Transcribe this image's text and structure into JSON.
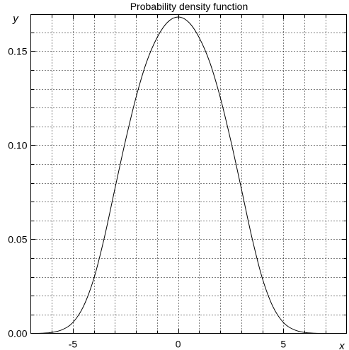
{
  "chart_data": {
    "type": "line",
    "title": "Probability density function",
    "xlabel": "x",
    "ylabel": "y",
    "xlim": [
      -7,
      8
    ],
    "ylim": [
      0,
      0.1695
    ],
    "grid": true,
    "xticks": [
      -5,
      0,
      5
    ],
    "xtick_labels": [
      "-5",
      "0",
      "5"
    ],
    "xminor_step": 1,
    "yticks": [
      0,
      0.05,
      0.1,
      0.15
    ],
    "ytick_labels": [
      "0.00",
      "0.05",
      "0.10",
      "0.15"
    ],
    "yminor_step": 0.01,
    "series": [
      {
        "x": [
          -7,
          -6.5,
          -6,
          -5.5,
          -5,
          -4.5,
          -4,
          -3.5,
          -3,
          -2.5,
          -2,
          -1.5,
          -1,
          -0.5,
          0,
          0.5,
          1,
          1.5,
          2,
          2.5,
          3,
          3.5,
          4,
          4.5,
          5,
          5.5,
          6,
          6.5,
          7,
          7.5,
          8
        ],
        "y": [
          0.0,
          0.0001,
          0.0005,
          0.002,
          0.0058,
          0.0143,
          0.0293,
          0.0512,
          0.0771,
          0.1025,
          0.1255,
          0.1442,
          0.1572,
          0.1654,
          0.1682,
          0.1654,
          0.1572,
          0.1442,
          0.1255,
          0.1025,
          0.0771,
          0.0512,
          0.0293,
          0.0143,
          0.0058,
          0.002,
          0.0005,
          0.0001,
          0.0,
          0.0,
          0.0
        ]
      }
    ]
  }
}
